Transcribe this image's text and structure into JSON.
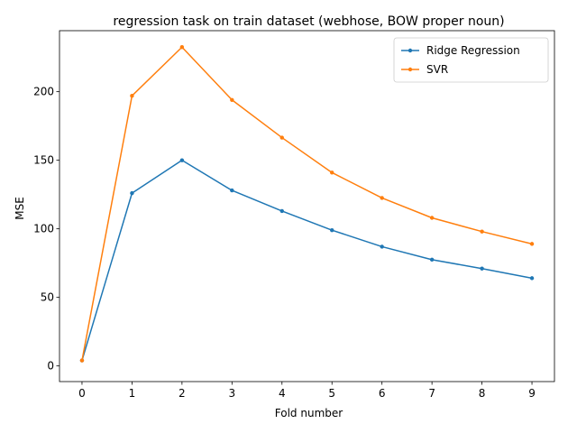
{
  "chart_data": {
    "type": "line",
    "title": "regression task on train dataset (webhose, BOW proper noun)",
    "xlabel": "Fold number",
    "ylabel": "MSE",
    "x": [
      0,
      1,
      2,
      3,
      4,
      5,
      6,
      7,
      8,
      9
    ],
    "xticks": [
      "0",
      "1",
      "2",
      "3",
      "4",
      "5",
      "6",
      "7",
      "8",
      "9"
    ],
    "yticks": [
      0,
      50,
      100,
      150,
      200
    ],
    "ytick_labels": [
      "0",
      "50",
      "100",
      "150",
      "200"
    ],
    "xlim": [
      -0.45,
      9.45
    ],
    "ylim": [
      -11.4,
      244.5
    ],
    "grid": false,
    "legend_position": "top-right",
    "series": [
      {
        "name": "Ridge Regression",
        "color": "#1f77b4",
        "values": [
          4,
          126,
          150,
          128,
          113,
          99,
          87,
          77.5,
          71,
          64
        ]
      },
      {
        "name": "SVR",
        "color": "#ff7f0e",
        "values": [
          4,
          197,
          232.5,
          194,
          166.5,
          141,
          122.5,
          108,
          98,
          89
        ]
      }
    ]
  }
}
